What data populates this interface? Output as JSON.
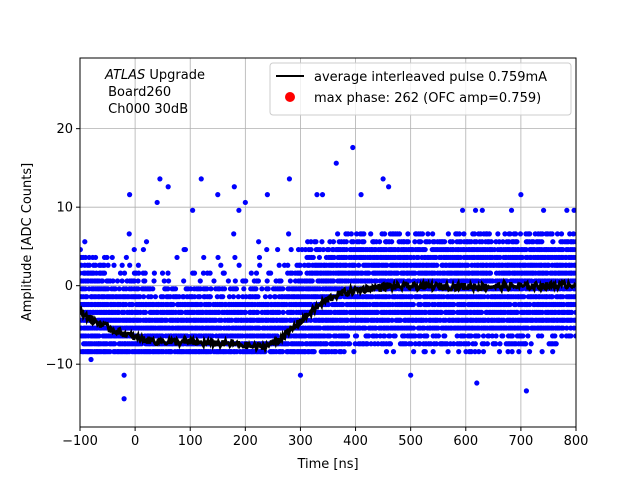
{
  "chart_data": {
    "type": "scatter",
    "title": "",
    "xlabel": "Time [ns]",
    "ylabel": "Amplitude [ADC Counts]",
    "xlim": [
      -100,
      800
    ],
    "ylim": [
      -18,
      29
    ],
    "xticks": [
      -100,
      0,
      100,
      200,
      300,
      400,
      500,
      600,
      700,
      800
    ],
    "xtick_labels": [
      "−100",
      "0",
      "100",
      "200",
      "300",
      "400",
      "500",
      "600",
      "700",
      "800"
    ],
    "yticks": [
      -10,
      0,
      10,
      20
    ],
    "ytick_labels": [
      "−10",
      "0",
      "10",
      "20"
    ],
    "grid": true,
    "legend_position": "top-right",
    "annotation": {
      "line1_italic": "ATLAS",
      "line1_rest": " Upgrade",
      "line2": " Board260",
      "line3": " Ch000 30dB"
    },
    "series": [
      {
        "name": "average interleaved pulse 0.759mA",
        "kind": "line",
        "color": "#000000",
        "x": [
          -100,
          -80,
          -60,
          -40,
          -20,
          0,
          20,
          40,
          60,
          80,
          100,
          120,
          140,
          160,
          180,
          200,
          220,
          240,
          260,
          280,
          300,
          320,
          340,
          360,
          380,
          400,
          420,
          440,
          460,
          480,
          500,
          550,
          600,
          650,
          700,
          750,
          800
        ],
        "y": [
          -3.2,
          -4.3,
          -5.0,
          -5.6,
          -6.1,
          -6.6,
          -6.9,
          -7.1,
          -7.1,
          -7.2,
          -7.2,
          -7.3,
          -7.3,
          -7.4,
          -7.4,
          -7.6,
          -7.8,
          -7.6,
          -6.9,
          -5.8,
          -4.5,
          -3.3,
          -2.2,
          -1.3,
          -0.9,
          -0.6,
          -0.4,
          -0.2,
          -0.1,
          -0.1,
          -0.1,
          -0.1,
          -0.1,
          -0.1,
          -0.1,
          0.0,
          0.2
        ]
      },
      {
        "name": "max phase: 262 (OFC amp=0.759)",
        "kind": "marker",
        "color": "#ff0000",
        "x": [],
        "y": []
      },
      {
        "name": "",
        "kind": "scatter",
        "color": "#0000ff",
        "note_levels": [
          -8.4,
          -7.4,
          -6.4,
          -5.4,
          -4.4,
          -3.4,
          -2.4,
          -1.4,
          -0.4,
          0.6,
          1.6,
          2.6,
          3.6,
          4.6,
          5.6,
          6.6,
          9.6
        ],
        "x": [
          -20,
          45,
          60,
          120,
          180,
          280,
          365,
          395,
          450,
          460,
          700,
          -80,
          -20,
          -10,
          40,
          150,
          200,
          240,
          330,
          340,
          410,
          300,
          500,
          620,
          710
        ],
        "y": [
          -14.4,
          13.6,
          12.6,
          13.6,
          12.6,
          13.6,
          15.6,
          17.6,
          13.6,
          12.6,
          11.6,
          -9.4,
          -11.4,
          11.6,
          10.6,
          11.6,
          10.6,
          11.6,
          11.6,
          11.6,
          11.6,
          -11.4,
          -11.4,
          -12.4,
          -13.4
        ]
      }
    ]
  }
}
